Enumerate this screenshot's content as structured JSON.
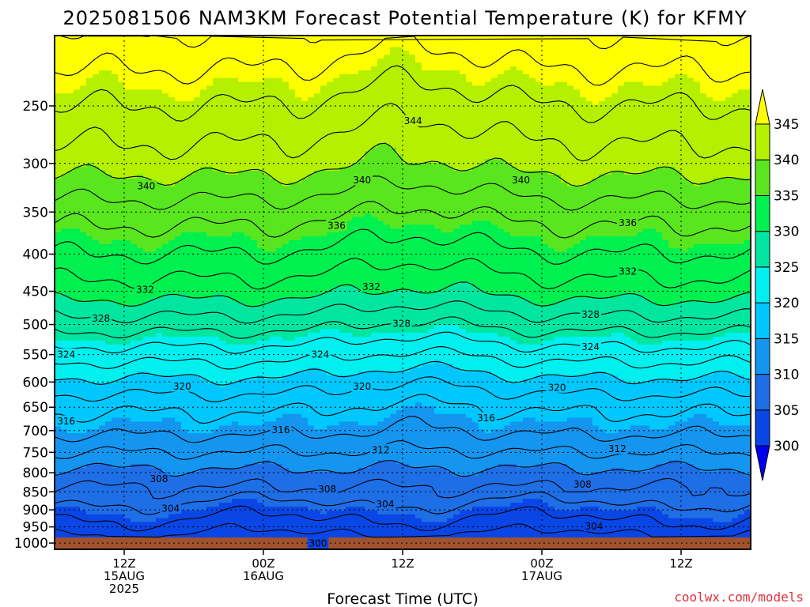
{
  "chart_data": {
    "type": "area",
    "title": "2025081506 NAM3KM Forecast Potential Temperature (K) for KFMY",
    "xlabel": "Forecast Time (UTC)",
    "credit": "coolwx.com/models",
    "y_axis": {
      "scale": "log-pressure",
      "ticks": [
        250,
        300,
        350,
        400,
        450,
        500,
        550,
        600,
        650,
        700,
        750,
        800,
        850,
        900,
        950,
        1000
      ],
      "range": [
        200,
        1020
      ]
    },
    "x_axis": {
      "range_hours": [
        0,
        60
      ],
      "ticks": [
        {
          "hour": 6,
          "line1": "12Z",
          "line2": "15AUG",
          "line3": "2025"
        },
        {
          "hour": 18,
          "line1": "00Z",
          "line2": "16AUG",
          "line3": ""
        },
        {
          "hour": 30,
          "line1": "12Z",
          "line2": "",
          "line3": ""
        },
        {
          "hour": 42,
          "line1": "00Z",
          "line2": "17AUG",
          "line3": ""
        },
        {
          "hour": 54,
          "line1": "12Z",
          "line2": "",
          "line3": ""
        }
      ]
    },
    "colorbar": {
      "levels": [
        300,
        305,
        310,
        315,
        320,
        325,
        330,
        335,
        340,
        345
      ],
      "bins": [
        {
          "min": 295,
          "max": 300,
          "color": "#0000f0"
        },
        {
          "min": 300,
          "max": 305,
          "color": "#0a46e6"
        },
        {
          "min": 305,
          "max": 310,
          "color": "#1e6ee6"
        },
        {
          "min": 310,
          "max": 315,
          "color": "#1496f0"
        },
        {
          "min": 315,
          "max": 320,
          "color": "#00c8ff"
        },
        {
          "min": 320,
          "max": 325,
          "color": "#00f0f0"
        },
        {
          "min": 325,
          "max": 330,
          "color": "#00e6a0"
        },
        {
          "min": 330,
          "max": 335,
          "color": "#00f050"
        },
        {
          "min": 335,
          "max": 340,
          "color": "#5ae61e"
        },
        {
          "min": 340,
          "max": 345,
          "color": "#b4f000"
        },
        {
          "min": 345,
          "max": 350,
          "color": "#ffff00"
        }
      ]
    },
    "ground_color": "#a0522d",
    "profile": [
      {
        "p": 1000,
        "theta": 300.5
      },
      {
        "p": 950,
        "theta": 303.0
      },
      {
        "p": 900,
        "theta": 305.0
      },
      {
        "p": 850,
        "theta": 307.5
      },
      {
        "p": 800,
        "theta": 309.5
      },
      {
        "p": 750,
        "theta": 312.0
      },
      {
        "p": 700,
        "theta": 314.5
      },
      {
        "p": 650,
        "theta": 316.5
      },
      {
        "p": 600,
        "theta": 319.5
      },
      {
        "p": 550,
        "theta": 323.0
      },
      {
        "p": 500,
        "theta": 327.0
      },
      {
        "p": 450,
        "theta": 331.0
      },
      {
        "p": 400,
        "theta": 334.0
      },
      {
        "p": 350,
        "theta": 337.0
      },
      {
        "p": 300,
        "theta": 341.0
      },
      {
        "p": 250,
        "theta": 344.0
      },
      {
        "p": 210,
        "theta": 347.0
      }
    ],
    "contour_labels": [
      {
        "value": "344",
        "hour": 30.9,
        "p": 262
      },
      {
        "value": "340",
        "hour": 7.9,
        "p": 322
      },
      {
        "value": "340",
        "hour": 26.5,
        "p": 316
      },
      {
        "value": "340",
        "hour": 40.2,
        "p": 316
      },
      {
        "value": "336",
        "hour": 24.3,
        "p": 365
      },
      {
        "value": "336",
        "hour": 49.4,
        "p": 362
      },
      {
        "value": "332",
        "hour": 7.8,
        "p": 447
      },
      {
        "value": "332",
        "hour": 27.3,
        "p": 443
      },
      {
        "value": "332",
        "hour": 49.4,
        "p": 422
      },
      {
        "value": "328",
        "hour": 4.0,
        "p": 490
      },
      {
        "value": "328",
        "hour": 29.9,
        "p": 498
      },
      {
        "value": "328",
        "hour": 46.2,
        "p": 484
      },
      {
        "value": "324",
        "hour": 1.0,
        "p": 549
      },
      {
        "value": "324",
        "hour": 22.9,
        "p": 549
      },
      {
        "value": "324",
        "hour": 46.2,
        "p": 536
      },
      {
        "value": "320",
        "hour": 11.0,
        "p": 608
      },
      {
        "value": "320",
        "hour": 26.5,
        "p": 608
      },
      {
        "value": "320",
        "hour": 43.3,
        "p": 610
      },
      {
        "value": "316",
        "hour": 1.0,
        "p": 679
      },
      {
        "value": "316",
        "hour": 19.5,
        "p": 698
      },
      {
        "value": "316",
        "hour": 37.2,
        "p": 672
      },
      {
        "value": "312",
        "hour": 28.1,
        "p": 744
      },
      {
        "value": "312",
        "hour": 48.5,
        "p": 741
      },
      {
        "value": "308",
        "hour": 9.0,
        "p": 815
      },
      {
        "value": "308",
        "hour": 23.5,
        "p": 842
      },
      {
        "value": "308",
        "hour": 45.5,
        "p": 829
      },
      {
        "value": "304",
        "hour": 10.0,
        "p": 895
      },
      {
        "value": "304",
        "hour": 28.5,
        "p": 883
      },
      {
        "value": "304",
        "hour": 46.5,
        "p": 947
      },
      {
        "value": "300",
        "hour": 22.7,
        "p": 1000
      }
    ]
  }
}
